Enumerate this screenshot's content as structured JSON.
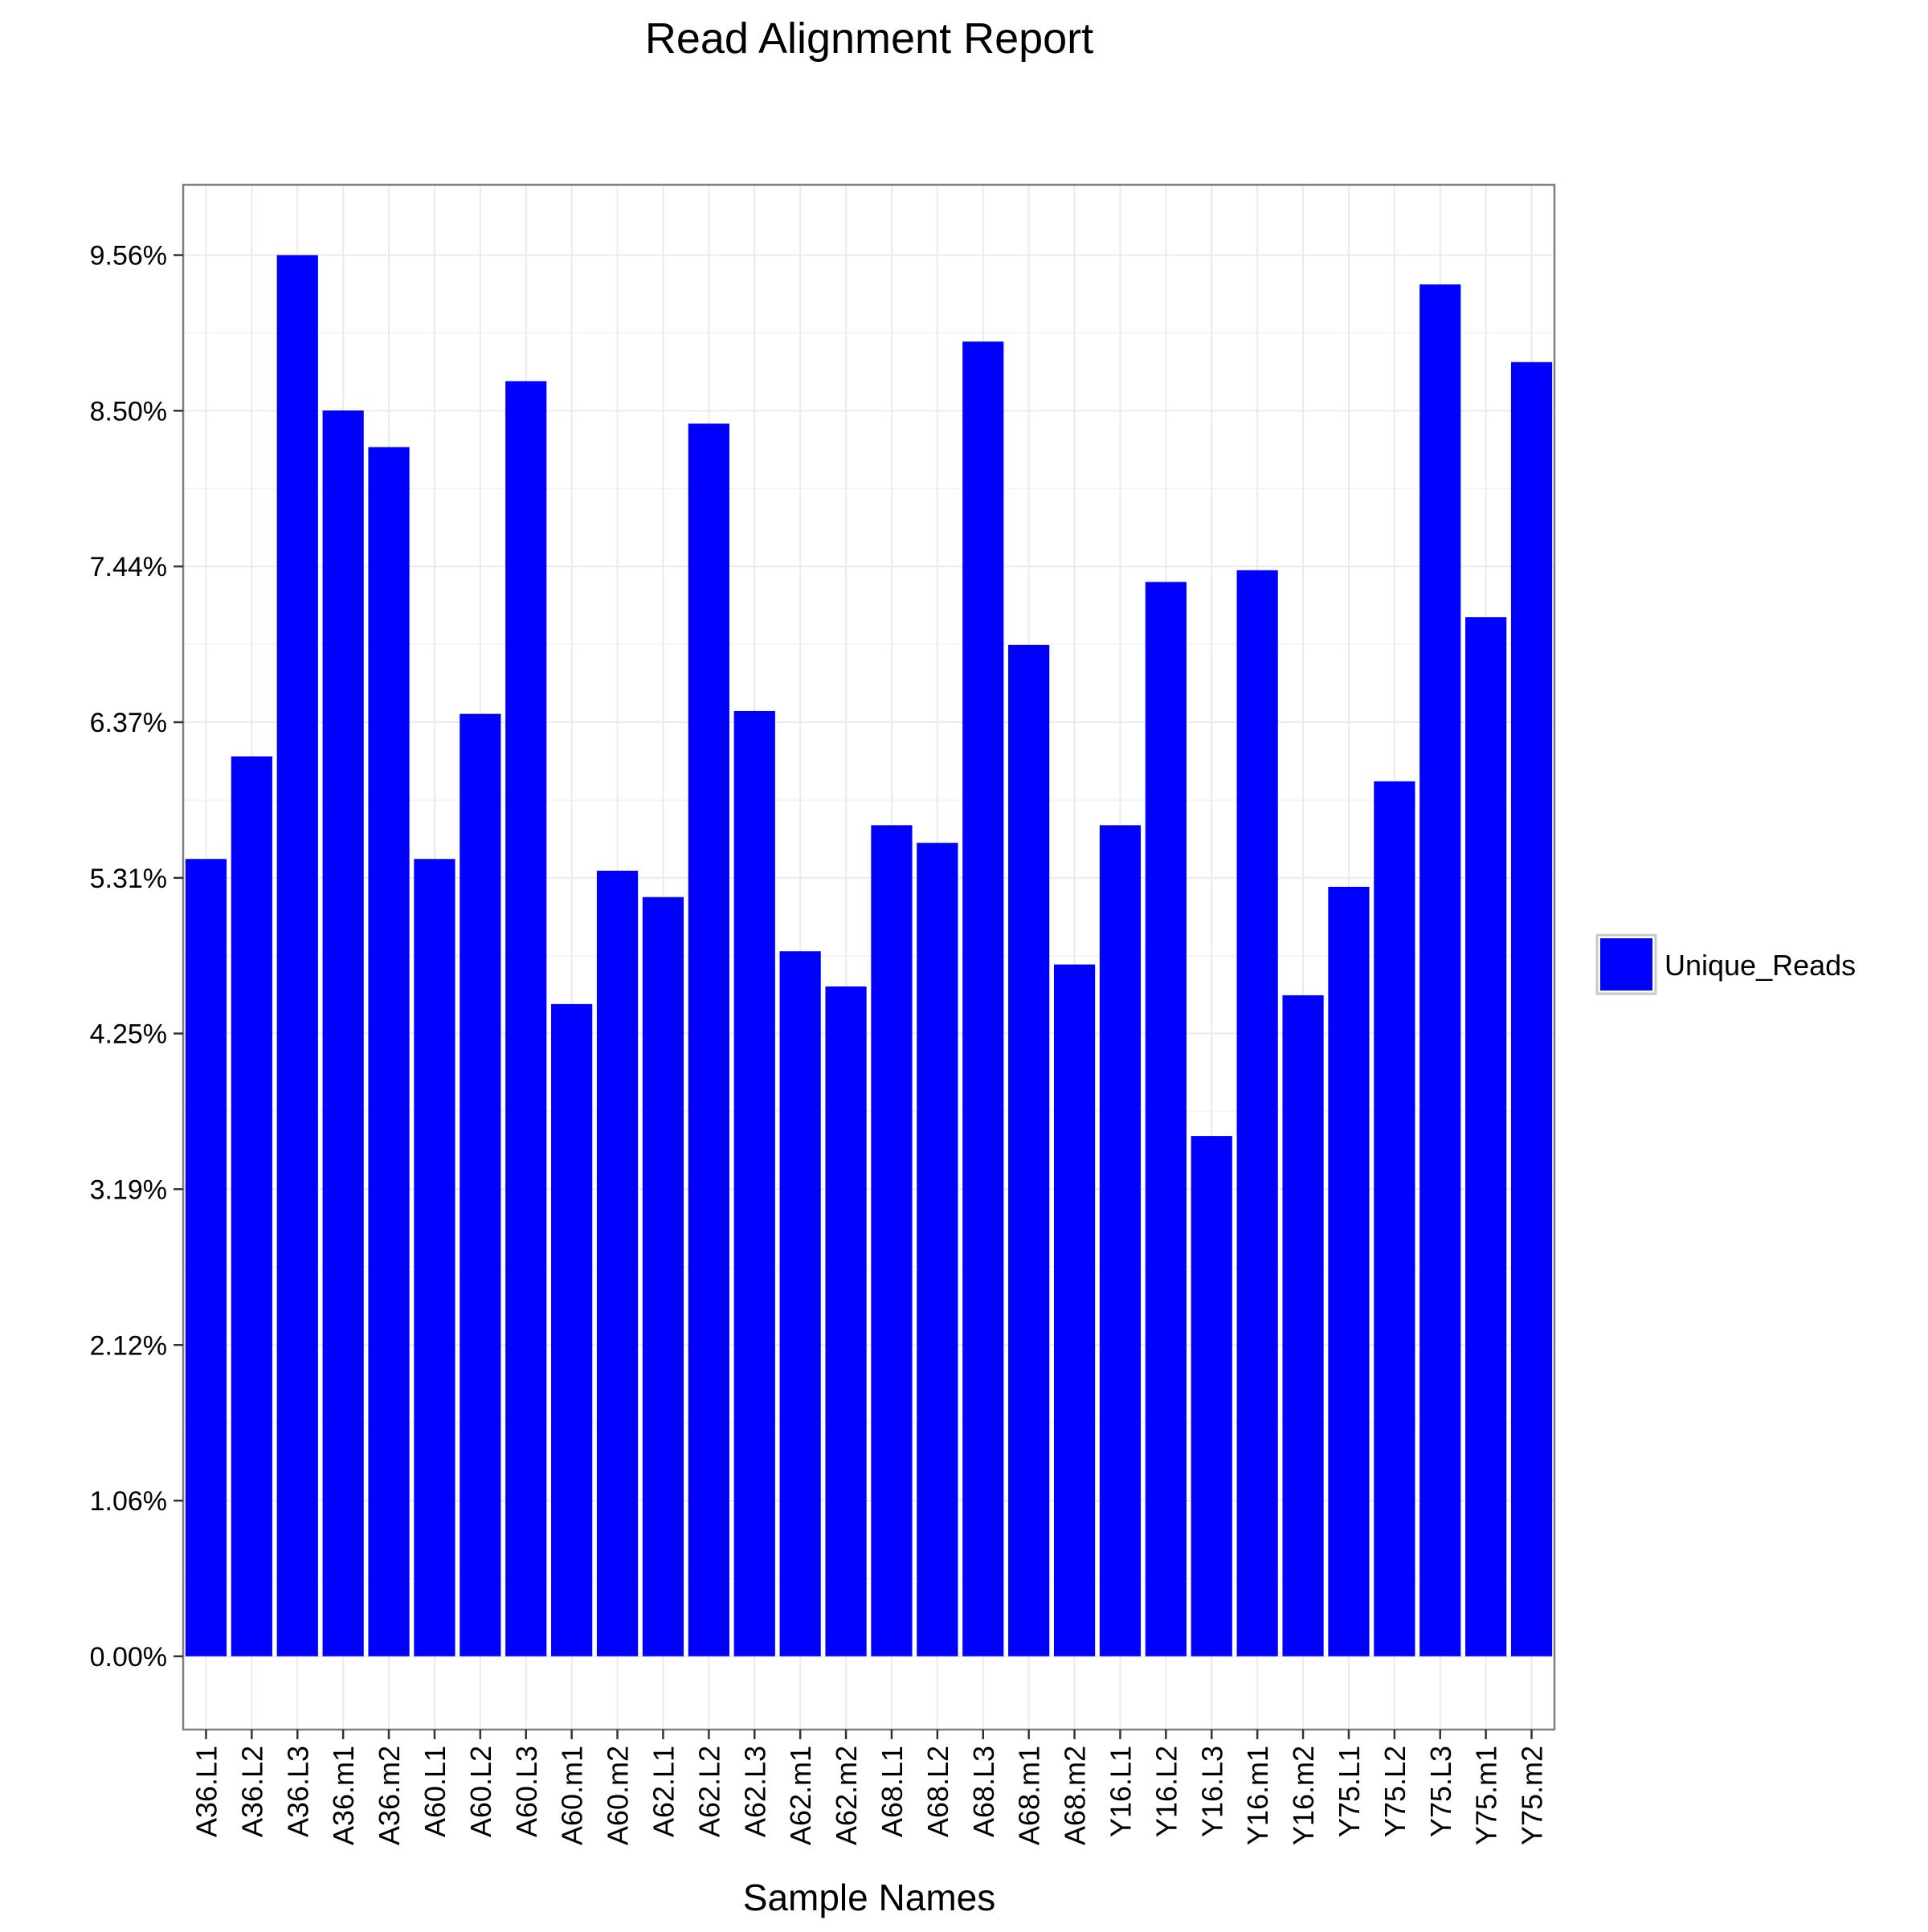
{
  "chart_data": {
    "type": "bar",
    "title": "Read Alignment Report",
    "xlabel": "Sample Names",
    "ylabel": "",
    "categories": [
      "A36.L1",
      "A36.L2",
      "A36.L3",
      "A36.m1",
      "A36.m2",
      "A60.L1",
      "A60.L2",
      "A60.L3",
      "A60.m1",
      "A60.m2",
      "A62.L1",
      "A62.L2",
      "A62.L3",
      "A62.m1",
      "A62.m2",
      "A68.L1",
      "A68.L2",
      "A68.L3",
      "A68.m1",
      "A68.m2",
      "Y16.L1",
      "Y16.L2",
      "Y16.L3",
      "Y16.m1",
      "Y16.m2",
      "Y75.L1",
      "Y75.L2",
      "Y75.L3",
      "Y75.m1",
      "Y75.m2"
    ],
    "series": [
      {
        "name": "Unique_Reads",
        "color": "#0000ff",
        "values": [
          5.44,
          6.14,
          9.56,
          8.5,
          8.25,
          5.44,
          6.43,
          8.7,
          4.45,
          5.36,
          5.18,
          8.41,
          6.45,
          4.81,
          4.57,
          5.67,
          5.55,
          8.97,
          6.9,
          4.72,
          5.67,
          7.33,
          3.55,
          7.41,
          4.51,
          5.25,
          5.97,
          9.36,
          7.09,
          8.83
        ]
      }
    ],
    "yticks": [
      "0.00%",
      "1.06%",
      "2.12%",
      "3.19%",
      "4.25%",
      "5.31%",
      "6.37%",
      "7.44%",
      "8.50%",
      "9.56%"
    ],
    "ytick_values": [
      0,
      1.062,
      2.124,
      3.187,
      4.249,
      5.311,
      6.373,
      7.436,
      8.498,
      9.56
    ],
    "ylim": [
      -0.5,
      10.04
    ],
    "grid": true,
    "legend_position": "right"
  }
}
